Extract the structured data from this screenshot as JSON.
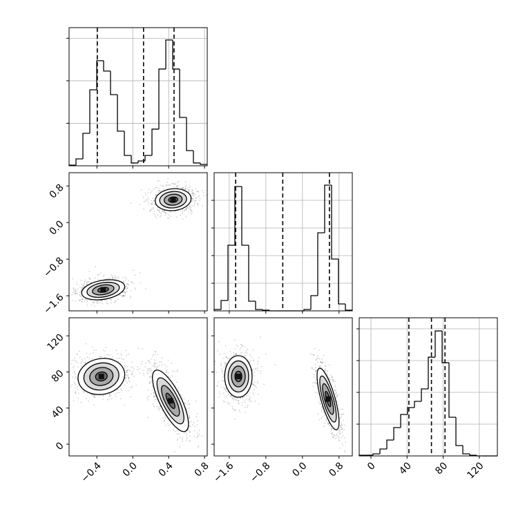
{
  "chart_data": {
    "type": "corner",
    "color": "#000000",
    "grid": true,
    "params": [
      {
        "lim": [
          -0.71,
          0.83
        ],
        "ticks": [
          {
            "value": -0.4,
            "label": "−0.4"
          },
          {
            "value": 0,
            "label": "0.0"
          },
          0.4,
          0.8
        ]
      },
      {
        "lim": [
          -1.93,
          1.09
        ],
        "ticks": [
          {
            "value": -1.6,
            "label": "−1.6"
          },
          {
            "value": -0.8,
            "label": "−0.8"
          },
          {
            "value": 0,
            "label": "0.0"
          },
          0.8
        ]
      },
      {
        "lim": [
          -13,
          140
        ],
        "ticks": [
          0,
          40,
          80,
          120
        ]
      }
    ],
    "histograms": [
      {
        "bins": [
          -0.71,
          -0.633,
          -0.556,
          -0.479,
          -0.402,
          -0.325,
          -0.248,
          -0.171,
          -0.094,
          -0.017,
          0.06,
          0.137,
          0.214,
          0.291,
          0.368,
          0.445,
          0.522,
          0.599,
          0.676,
          0.753,
          0.83
        ],
        "counts": [
          8,
          81,
          382,
          894,
          1236,
          1114,
          837,
          407,
          122,
          33,
          57,
          122,
          431,
          1138,
          1480,
          1138,
          569,
          179,
          33,
          16
        ],
        "ylim": [
          0,
          1625
        ],
        "yticks": [
          500,
          1000,
          1500
        ],
        "quantiles": [
          -0.395,
          0.12,
          0.46
        ]
      },
      {
        "bins": [
          -1.93,
          -1.779,
          -1.628,
          -1.477,
          -1.326,
          -1.175,
          -1.024,
          -0.873,
          -0.722,
          -0.571,
          -0.42,
          -0.269,
          -0.118,
          0.033,
          0.184,
          0.335,
          0.486,
          0.637,
          0.788,
          0.939,
          1.09
        ],
        "counts": [
          50,
          375,
          2375,
          4500,
          2375,
          350,
          50,
          25,
          0,
          0,
          0,
          0,
          0,
          50,
          550,
          2825,
          4550,
          1875,
          250,
          25
        ],
        "ylim": [
          0,
          5000
        ],
        "yticks": [
          1000,
          2000,
          3000,
          4000
        ],
        "quantiles": [
          -1.46,
          -0.43,
          0.59
        ]
      },
      {
        "bins": [
          -13,
          -5.35,
          2.3,
          9.95,
          17.6,
          25.25,
          32.9,
          40.55,
          48.2,
          55.85,
          63.5,
          71.15,
          78.8,
          86.45,
          94.1,
          101.75,
          109.4,
          117.05,
          124.7,
          132.35,
          140
        ],
        "counts": [
          11,
          11,
          33,
          109,
          250,
          446,
          652,
          761,
          859,
          1054,
          1554,
          1967,
          1467,
          609,
          163,
          33,
          11,
          0,
          0,
          0
        ],
        "ylim": [
          0,
          2174
        ],
        "yticks": [
          500,
          1000,
          1500,
          2000
        ],
        "quantiles": [
          42,
          67,
          82
        ]
      }
    ],
    "pairs": [
      {
        "x_param": 0,
        "y_param": 1,
        "clusters": [
          {
            "x": -0.33,
            "y": -1.47,
            "sx": 0.12,
            "sy": 0.11,
            "rho": 0.3
          },
          {
            "x": 0.45,
            "y": 0.5,
            "sx": 0.1,
            "sy": 0.12,
            "rho": 0.1
          }
        ]
      },
      {
        "x_param": 0,
        "y_param": 2,
        "clusters": [
          {
            "x": -0.35,
            "y": 75,
            "sx": 0.13,
            "sy": 10,
            "rho": 0.1
          },
          {
            "x": 0.42,
            "y": 48,
            "sx": 0.1,
            "sy": 17,
            "rho": -0.75
          }
        ]
      },
      {
        "x_param": 1,
        "y_param": 2,
        "clusters": [
          {
            "x": -1.4,
            "y": 75,
            "sx": 0.15,
            "sy": 11.5,
            "rho": 0.0
          },
          {
            "x": 0.56,
            "y": 50,
            "sx": 0.12,
            "sy": 17,
            "rho": -0.75
          }
        ]
      }
    ]
  }
}
